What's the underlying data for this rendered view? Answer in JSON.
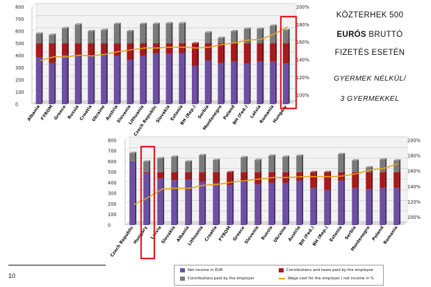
{
  "side_text": {
    "line1_a": "KÖZTERHEK 500",
    "line2_bold": "EURÓS",
    "line2_rest": " BRUTTÓ",
    "line3": "FIZETÉS ESETÉN",
    "line4": "GYERMEK NÉLKÜL/",
    "line5": "3 GYERMEKKEL"
  },
  "page_number": "10",
  "legend": {
    "net": "Net income in EUR",
    "contrib_employee": "Contributions and taxes paid by the employee",
    "contrib_employer": "Contributions paid by the employer",
    "wage_cost_line": "Wage cost for the employer / net income in %"
  },
  "colors": {
    "net": "#6e4fa3",
    "contrib_employee": "#a8191c",
    "contrib_employer": "#7a7a7a",
    "line": "#e8a317",
    "highlight": "#e01b24"
  },
  "chart_data": [
    {
      "type": "bar",
      "stacked": true,
      "ylim": [
        0,
        800
      ],
      "y_ticks": [
        0,
        100,
        200,
        300,
        400,
        500,
        600,
        700,
        800
      ],
      "y2lim": [
        90,
        200
      ],
      "y2_ticks": [
        "100%",
        "120%",
        "140%",
        "160%",
        "180%",
        "200%"
      ],
      "categories": [
        "Albania",
        "FYROM",
        "Greece",
        "Russia",
        "Croatia",
        "Ukraine",
        "Austria",
        "Slovenia",
        "Lithuania",
        "Czech Republic",
        "Slovakia",
        "Estonia",
        "BH (Rep.)",
        "Serbia",
        "Montenegro",
        "Poland",
        "BH (Fed.)",
        "Latvia",
        "Romania",
        "Hungary"
      ],
      "highlight": "Hungary",
      "series": [
        {
          "name": "Net income in EUR",
          "values": [
            385,
            340,
            405,
            400,
            395,
            410,
            400,
            365,
            400,
            420,
            415,
            420,
            315,
            360,
            340,
            350,
            335,
            350,
            350,
            335
          ]
        },
        {
          "name": "Contributions and taxes paid by the employee",
          "values": [
            115,
            160,
            95,
            100,
            105,
            90,
            100,
            135,
            100,
            80,
            85,
            80,
            185,
            140,
            160,
            150,
            165,
            150,
            150,
            165
          ]
        },
        {
          "name": "Contributions paid by the employer",
          "values": [
            80,
            70,
            125,
            155,
            100,
            110,
            160,
            100,
            160,
            160,
            165,
            165,
            0,
            90,
            45,
            100,
            120,
            120,
            145,
            110
          ]
        },
        {
          "name": "Wage cost for the employer / net income in %",
          "axis": "right",
          "values": [
            138,
            142,
            142,
            144,
            143,
            145,
            148,
            150,
            152,
            152,
            153,
            153,
            152,
            153,
            156,
            158,
            161,
            162,
            168,
            176
          ]
        }
      ]
    },
    {
      "type": "bar",
      "stacked": true,
      "ylim": [
        0,
        800
      ],
      "y_ticks": [
        0,
        100,
        200,
        300,
        400,
        500,
        600,
        700,
        800
      ],
      "y2lim": [
        90,
        200
      ],
      "y2_ticks": [
        "100%",
        "120%",
        "140%",
        "160%",
        "180%",
        "200%"
      ],
      "categories": [
        "Czech Republic",
        "Hungary",
        "Latvia",
        "Slovakia",
        "Albania",
        "Lithuania",
        "Croatia",
        "FYROM",
        "Greece",
        "Slovenia",
        "Russia",
        "Ukraine",
        "Austria",
        "BH (Fed.)",
        "BH (Rep.)",
        "Estonia",
        "Serbia",
        "Montenegro",
        "Poland",
        "Romania"
      ],
      "highlight": "Hungary",
      "series": [
        {
          "name": "Net income in EUR",
          "values": [
            600,
            490,
            440,
            425,
            430,
            410,
            400,
            380,
            420,
            385,
            400,
            400,
            420,
            350,
            330,
            420,
            350,
            340,
            350,
            350
          ]
        },
        {
          "name": "Contributions and taxes paid by the employee",
          "values": [
            0,
            10,
            60,
            75,
            70,
            90,
            100,
            120,
            80,
            115,
            100,
            100,
            80,
            150,
            170,
            80,
            150,
            160,
            150,
            150
          ]
        },
        {
          "name": "Contributions paid by the employer",
          "values": [
            80,
            100,
            130,
            145,
            100,
            160,
            115,
            0,
            140,
            115,
            155,
            145,
            155,
            0,
            0,
            170,
            110,
            45,
            120,
            110
          ]
        },
        {
          "name": "Wage cost for the employer / net income in %",
          "axis": "right",
          "values": [
            115,
            124,
            135,
            136,
            136,
            140,
            141,
            144,
            146,
            148,
            150,
            150,
            151,
            151,
            151,
            152,
            155,
            160,
            162,
            168
          ]
        }
      ]
    }
  ]
}
